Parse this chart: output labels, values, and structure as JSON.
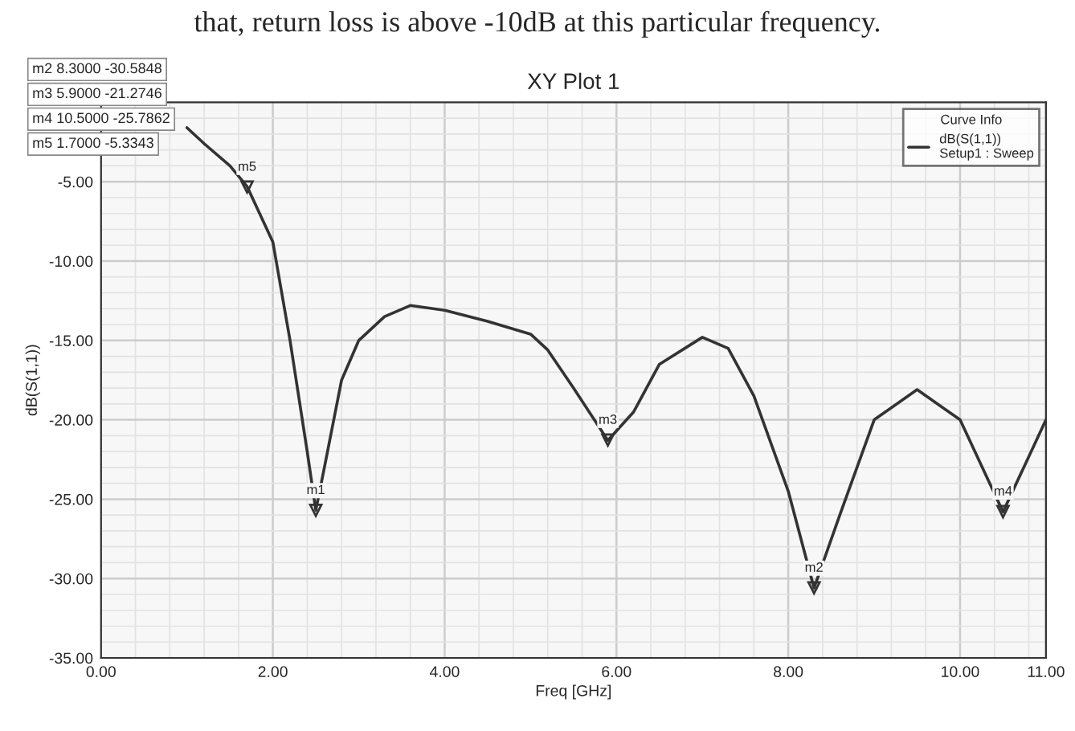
{
  "chart_data": {
    "type": "line",
    "title": "XY Plot 1",
    "xlabel": "Freq [GHz]",
    "ylabel": "dB(S(1,1))",
    "legend_title": "Curve Info",
    "x": [
      1.0,
      1.2,
      1.5,
      1.7,
      2.0,
      2.2,
      2.4,
      2.5,
      2.6,
      2.8,
      3.0,
      3.3,
      3.6,
      4.0,
      4.5,
      5.0,
      5.2,
      5.5,
      5.9,
      6.2,
      6.5,
      7.0,
      7.3,
      7.6,
      8.0,
      8.3,
      8.6,
      9.0,
      9.5,
      10.0,
      10.5,
      11.0
    ],
    "series": [
      {
        "name": "dB(S(1,1))\nSetup1 : Sweep",
        "color": "#333333",
        "values": [
          -1.6,
          -2.6,
          -4.0,
          -5.3,
          -8.8,
          -15.0,
          -22.0,
          -25.7,
          -23.0,
          -17.5,
          -15.0,
          -13.5,
          -12.8,
          -13.1,
          -13.8,
          -14.6,
          -15.6,
          -18.0,
          -21.3,
          -19.5,
          -16.5,
          -14.8,
          -15.5,
          -18.5,
          -24.5,
          -30.6,
          -26.0,
          -20.0,
          -18.1,
          -20.0,
          -25.8,
          -20.0
        ]
      }
    ],
    "xlim": [
      0,
      11
    ],
    "xticks": [
      {
        "value": 0,
        "label": "0.00"
      },
      {
        "value": 2,
        "label": "2.00"
      },
      {
        "value": 4,
        "label": "4.00"
      },
      {
        "value": 6,
        "label": "6.00"
      },
      {
        "value": 8,
        "label": "8.00"
      },
      {
        "value": 10,
        "label": "10.00"
      },
      {
        "value": 11,
        "label": "11.00"
      }
    ],
    "ylim": [
      -35,
      0
    ],
    "yticks": [
      {
        "value": -35,
        "label": "-35.00"
      },
      {
        "value": -30,
        "label": "-30.00"
      },
      {
        "value": -25,
        "label": "-25.00"
      },
      {
        "value": -20,
        "label": "-20.00"
      },
      {
        "value": -15,
        "label": "-15.00"
      },
      {
        "value": -10,
        "label": "-10.00"
      },
      {
        "value": -5,
        "label": "-5.00"
      }
    ],
    "grid": true,
    "legend": "top right",
    "marker": "none",
    "line_style": "solid",
    "annotations": [
      "that, return loss is above -10dB at this particular frequency.",
      "m2 8.3000 -30.5848",
      "m3 5.9000 -21.2746",
      "m4 10.5000 -25.7862",
      "m5 1.7000 -5.3343",
      {
        "text": "m1",
        "x": 2.5,
        "y": -25.7
      },
      {
        "text": "m2",
        "x": 8.3,
        "y": -30.5848
      },
      {
        "text": "m3",
        "x": 5.9,
        "y": -21.2746
      },
      {
        "text": "m4",
        "x": 10.5,
        "y": -25.7862
      },
      {
        "text": "m5",
        "x": 1.7,
        "y": -5.3343
      }
    ]
  }
}
